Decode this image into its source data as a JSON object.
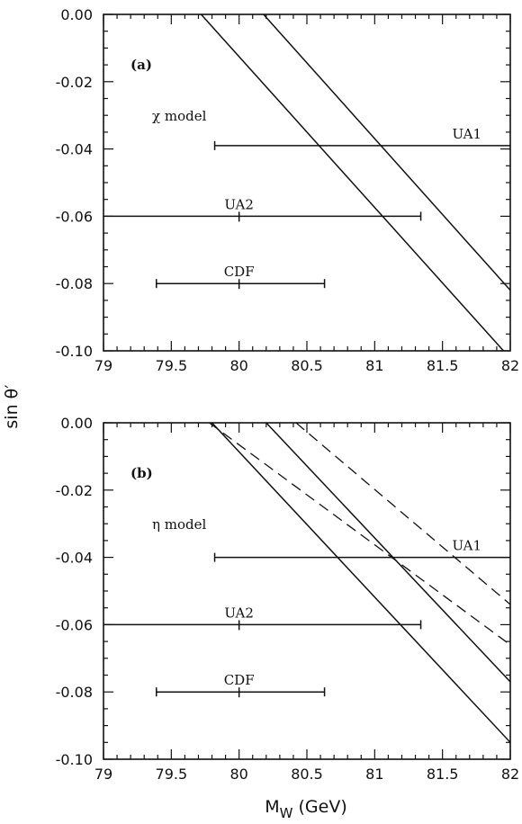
{
  "chart_data": [
    {
      "type": "line",
      "panel_label": "(a)",
      "model_label": "χ model",
      "xlabel": "M_W (GeV)",
      "ylabel": "sin θ′",
      "xlim": [
        79,
        82
      ],
      "ylim": [
        -0.1,
        0.0
      ],
      "x_ticks": [
        "79",
        "79.5",
        "80",
        "80.5",
        "81",
        "81.5",
        "82"
      ],
      "y_ticks": [
        "0.00",
        "-0.02",
        "-0.04",
        "-0.06",
        "-0.08",
        "-0.10"
      ],
      "show_x_tick_labels": true,
      "series": [
        {
          "style": "solid",
          "points": [
            [
              79.72,
              0.0
            ],
            [
              81.95,
              -0.1
            ]
          ]
        },
        {
          "style": "solid",
          "points": [
            [
              80.18,
              0.0
            ],
            [
              82.0,
              -0.082
            ]
          ]
        }
      ],
      "measurements": [
        {
          "label": "UA1",
          "y": -0.039,
          "x_low": 79.82,
          "x_high": 82.0,
          "center": null
        },
        {
          "label": "UA2",
          "y": -0.06,
          "x_low": 79.0,
          "x_high": 81.34,
          "center": 80.0
        },
        {
          "label": "CDF",
          "y": -0.08,
          "x_low": 79.39,
          "x_high": 80.63,
          "center": 80.0
        }
      ]
    },
    {
      "type": "line",
      "panel_label": "(b)",
      "model_label": "η model",
      "xlabel": "M_W (GeV)",
      "ylabel": "sin θ′",
      "xlim": [
        79,
        82
      ],
      "ylim": [
        -0.1,
        0.0
      ],
      "x_ticks": [
        "79",
        "79.5",
        "80",
        "80.5",
        "81",
        "81.5",
        "82"
      ],
      "y_ticks": [
        "0.00",
        "-0.02",
        "-0.04",
        "-0.06",
        "-0.08",
        "-0.10"
      ],
      "show_x_tick_labels": true,
      "series": [
        {
          "style": "solid",
          "points": [
            [
              79.8,
              0.0
            ],
            [
              82.0,
              -0.095
            ]
          ]
        },
        {
          "style": "solid",
          "points": [
            [
              80.2,
              0.0
            ],
            [
              82.0,
              -0.077
            ]
          ]
        },
        {
          "style": "dashed",
          "points": [
            [
              79.78,
              0.0
            ],
            [
              82.0,
              -0.066
            ]
          ]
        },
        {
          "style": "dashed",
          "points": [
            [
              80.42,
              0.0
            ],
            [
              82.0,
              -0.054
            ]
          ]
        }
      ],
      "measurements": [
        {
          "label": "UA1",
          "y": -0.04,
          "x_low": 79.82,
          "x_high": 82.0,
          "center": null
        },
        {
          "label": "UA2",
          "y": -0.06,
          "x_low": 79.0,
          "x_high": 81.34,
          "center": 80.0
        },
        {
          "label": "CDF",
          "y": -0.08,
          "x_low": 79.39,
          "x_high": 80.63,
          "center": 80.0
        }
      ]
    }
  ],
  "figure": {
    "ylabel_text": "sin θ′",
    "xlabel_main": "M",
    "xlabel_sub": "W",
    "xlabel_unit": " (GeV)"
  }
}
